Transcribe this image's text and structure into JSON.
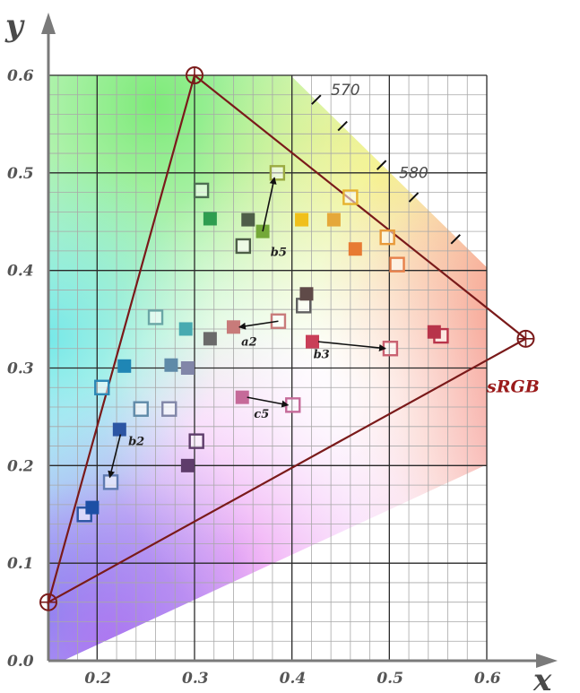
{
  "chart_data": {
    "type": "scatter",
    "title": "",
    "xlabel": "x",
    "ylabel": "y",
    "xlim": [
      0.15,
      0.6
    ],
    "ylim": [
      0.0,
      0.6
    ],
    "x_ticks": [
      "0.2",
      "0.3",
      "0.4",
      "0.5",
      "0.6"
    ],
    "y_ticks": [
      "0.0",
      "0.1",
      "0.2",
      "0.3",
      "0.4",
      "0.5",
      "0.6"
    ],
    "grid": true,
    "spectral_locus_labels": [
      {
        "label": "570",
        "x": 0.44,
        "y": 0.58
      },
      {
        "label": "580",
        "x": 0.51,
        "y": 0.495
      }
    ],
    "spectral_locus_ticks": [
      {
        "x": 0.425,
        "y": 0.575
      },
      {
        "x": 0.452,
        "y": 0.548
      },
      {
        "x": 0.492,
        "y": 0.508
      },
      {
        "x": 0.525,
        "y": 0.475
      },
      {
        "x": 0.568,
        "y": 0.432
      }
    ],
    "gamut": {
      "label": "sRGB",
      "label_pos": {
        "x": 0.6,
        "y": 0.275
      },
      "color": "#7a1a1a",
      "vertices": [
        {
          "name": "red",
          "x": 0.64,
          "y": 0.33
        },
        {
          "name": "green",
          "x": 0.3,
          "y": 0.6
        },
        {
          "name": "blue",
          "x": 0.15,
          "y": 0.06
        }
      ]
    },
    "filled_markers": [
      {
        "x": 0.293,
        "y": 0.48,
        "color": "#ffffff",
        "hollow_color": "#4d6e52",
        "hollow": true
      },
      {
        "x": 0.316,
        "y": 0.453,
        "color": "#2e9d4f"
      },
      {
        "x": 0.355,
        "y": 0.452,
        "color": "#4e5e48"
      },
      {
        "x": 0.37,
        "y": 0.44,
        "color": "#74a838"
      },
      {
        "x": 0.41,
        "y": 0.452,
        "color": "#f0c01a"
      },
      {
        "x": 0.443,
        "y": 0.452,
        "color": "#e5a83a"
      },
      {
        "x": 0.465,
        "y": 0.422,
        "color": "#e77a33"
      },
      {
        "x": 0.34,
        "y": 0.342,
        "color": "#c87b7a"
      },
      {
        "x": 0.415,
        "y": 0.376,
        "color": "#5f4a48"
      },
      {
        "x": 0.421,
        "y": 0.327,
        "color": "#c93f58"
      },
      {
        "x": 0.546,
        "y": 0.337,
        "color": "#b8344a"
      },
      {
        "x": 0.291,
        "y": 0.34,
        "color": "#47aab0"
      },
      {
        "x": 0.316,
        "y": 0.33,
        "color": "#6a6a6a"
      },
      {
        "x": 0.228,
        "y": 0.302,
        "color": "#1f86b5"
      },
      {
        "x": 0.276,
        "y": 0.303,
        "color": "#5f8aa8"
      },
      {
        "x": 0.293,
        "y": 0.3,
        "color": "#8186a8"
      },
      {
        "x": 0.349,
        "y": 0.27,
        "color": "#c56a99"
      },
      {
        "x": 0.223,
        "y": 0.237,
        "color": "#2b55a3"
      },
      {
        "x": 0.293,
        "y": 0.2,
        "color": "#5e3c6b"
      },
      {
        "x": 0.195,
        "y": 0.157,
        "color": "#1d4fa5"
      }
    ],
    "hollow_markers": [
      {
        "x": 0.307,
        "y": 0.482,
        "color": "#4d6e52"
      },
      {
        "x": 0.385,
        "y": 0.5,
        "color": "#9aaa40"
      },
      {
        "x": 0.35,
        "y": 0.425,
        "color": "#4e5e48"
      },
      {
        "x": 0.46,
        "y": 0.475,
        "color": "#e6b22e"
      },
      {
        "x": 0.498,
        "y": 0.434,
        "color": "#e89a3a"
      },
      {
        "x": 0.508,
        "y": 0.406,
        "color": "#e7804a"
      },
      {
        "x": 0.412,
        "y": 0.364,
        "color": "#606060"
      },
      {
        "x": 0.386,
        "y": 0.348,
        "color": "#c87b7a"
      },
      {
        "x": 0.501,
        "y": 0.32,
        "color": "#c96070"
      },
      {
        "x": 0.553,
        "y": 0.333,
        "color": "#b8344a"
      },
      {
        "x": 0.26,
        "y": 0.352,
        "color": "#6aa6a6"
      },
      {
        "x": 0.205,
        "y": 0.28,
        "color": "#2a86b5"
      },
      {
        "x": 0.245,
        "y": 0.258,
        "color": "#5f8aa8"
      },
      {
        "x": 0.274,
        "y": 0.258,
        "color": "#8186a8"
      },
      {
        "x": 0.302,
        "y": 0.225,
        "color": "#5e3c6b"
      },
      {
        "x": 0.401,
        "y": 0.262,
        "color": "#c56a99"
      },
      {
        "x": 0.214,
        "y": 0.183,
        "color": "#5f7ab0"
      },
      {
        "x": 0.187,
        "y": 0.15,
        "color": "#2b55a3"
      }
    ],
    "arrows": [
      {
        "label": "b5",
        "from": {
          "x": 0.37,
          "y": 0.44
        },
        "to": {
          "x": 0.382,
          "y": 0.495
        },
        "label_pos": {
          "x": 0.378,
          "y": 0.415
        }
      },
      {
        "label": "a2",
        "from": {
          "x": 0.386,
          "y": 0.348
        },
        "to": {
          "x": 0.346,
          "y": 0.342
        },
        "label_pos": {
          "x": 0.348,
          "y": 0.323
        }
      },
      {
        "label": "b3",
        "from": {
          "x": 0.427,
          "y": 0.327
        },
        "to": {
          "x": 0.496,
          "y": 0.32
        },
        "label_pos": {
          "x": 0.422,
          "y": 0.31
        }
      },
      {
        "label": "c5",
        "from": {
          "x": 0.354,
          "y": 0.27
        },
        "to": {
          "x": 0.396,
          "y": 0.262
        },
        "label_pos": {
          "x": 0.361,
          "y": 0.249
        }
      },
      {
        "label": "b2",
        "from": {
          "x": 0.224,
          "y": 0.232
        },
        "to": {
          "x": 0.213,
          "y": 0.188
        },
        "label_pos": {
          "x": 0.232,
          "y": 0.221
        }
      }
    ]
  }
}
